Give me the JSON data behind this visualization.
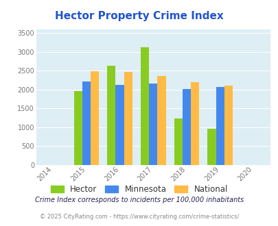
{
  "title": "Hector Property Crime Index",
  "years": [
    2015,
    2016,
    2017,
    2018,
    2019
  ],
  "hector": [
    1960,
    2640,
    3130,
    1230,
    960
  ],
  "minnesota": [
    2220,
    2130,
    2170,
    2010,
    2070
  ],
  "national": [
    2490,
    2470,
    2370,
    2200,
    2110
  ],
  "hector_color": "#88cc22",
  "minnesota_color": "#4488ee",
  "national_color": "#ffbb44",
  "xlim": [
    2013.5,
    2020.5
  ],
  "ylim": [
    0,
    3600
  ],
  "yticks": [
    0,
    500,
    1000,
    1500,
    2000,
    2500,
    3000,
    3500
  ],
  "bg_color": "#ddeef5",
  "legend_labels": [
    "Hector",
    "Minnesota",
    "National"
  ],
  "note": "Crime Index corresponds to incidents per 100,000 inhabitants",
  "copyright": "© 2025 CityRating.com - https://www.cityrating.com/crime-statistics/",
  "title_color": "#2255cc",
  "note_color": "#222255",
  "copyright_color": "#888888",
  "xticks": [
    2014,
    2015,
    2016,
    2017,
    2018,
    2019,
    2020
  ],
  "bar_width": 0.25
}
